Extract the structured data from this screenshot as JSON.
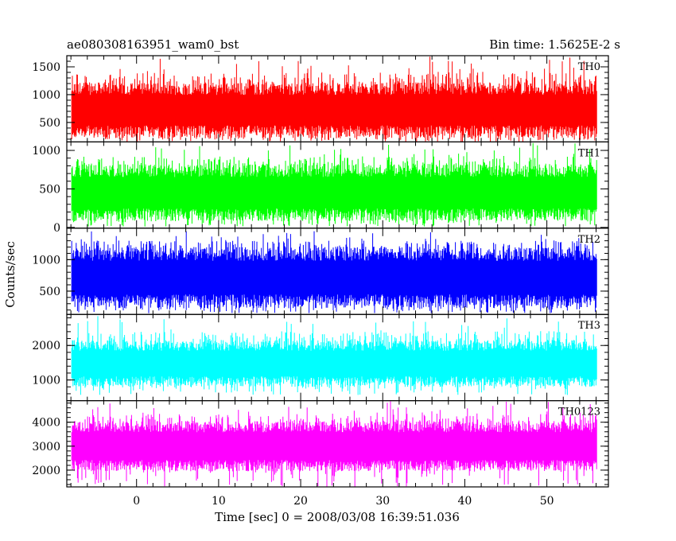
{
  "header": {
    "left": "ae080308163951_wam0_bst",
    "right": "Bin time: 1.5625E-2 s"
  },
  "chart_data": {
    "type": "line",
    "title": "ae080308163951_wam0_bst",
    "xlabel": "Time [sec] 0 = 2008/03/08 16:39:51.036",
    "ylabel": "Counts/sec",
    "xlim": [
      -8.5,
      57.5
    ],
    "x_ticks": [
      0,
      10,
      20,
      30,
      40,
      50
    ],
    "x_range_data": [
      -7.9,
      56.1
    ],
    "panels": [
      {
        "name": "TH0",
        "color": "#ff0000",
        "ylim": [
          150,
          1700
        ],
        "y_ticks": [
          500,
          1000,
          1500
        ],
        "band": [
          220,
          1220
        ],
        "spike_max": 1700,
        "dip_min": 150
      },
      {
        "name": "TH1",
        "color": "#00ff00",
        "ylim": [
          -10,
          1110
        ],
        "y_ticks": [
          0,
          500,
          1000
        ],
        "band": [
          80,
          820
        ],
        "spike_max": 1110,
        "dip_min": 10
      },
      {
        "name": "TH2",
        "color": "#0000ff",
        "ylim": [
          130,
          1500
        ],
        "y_ticks": [
          500,
          1000
        ],
        "band": [
          230,
          1200
        ],
        "spike_max": 1500,
        "dip_min": 150
      },
      {
        "name": "TH3",
        "color": "#00ffff",
        "ylim": [
          400,
          2900
        ],
        "y_ticks": [
          1000,
          2000
        ],
        "band": [
          800,
          2150
        ],
        "spike_max": 2900,
        "dip_min": 560
      },
      {
        "name": "TH0123",
        "color": "#ff00ff",
        "ylim": [
          1300,
          4900
        ],
        "y_ticks": [
          2000,
          3000,
          4000
        ],
        "band": [
          1950,
          4050
        ],
        "spike_max": 4900,
        "dip_min": 1300
      }
    ]
  }
}
